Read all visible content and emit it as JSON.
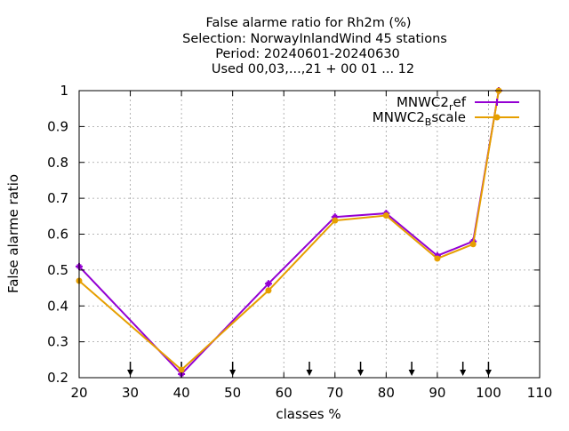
{
  "chart_data": {
    "type": "line",
    "title_lines": [
      "False alarme ratio  for Rh2m (%)",
      "Selection: NorwayInlandWind     45 stations",
      "Period: 20240601-20240630",
      "Used 00,03,...,21 + 00 01 ... 12"
    ],
    "xlabel": "classes %",
    "ylabel": "False alarme ratio",
    "xlim": [
      20,
      110
    ],
    "ylim": [
      0.2,
      1.0
    ],
    "x_ticks": [
      20,
      30,
      40,
      50,
      60,
      70,
      80,
      90,
      100,
      110
    ],
    "x_tick_labels": [
      "20",
      "30",
      "40",
      "50",
      "60",
      "70",
      "80",
      "90",
      "100",
      "110"
    ],
    "y_ticks": [
      0.2,
      0.3,
      0.4,
      0.5,
      0.6,
      0.7,
      0.8,
      0.9,
      1.0
    ],
    "y_tick_labels": [
      "0.2",
      "0.3",
      "0.4",
      "0.5",
      "0.6",
      "0.7",
      "0.8",
      "0.9",
      "1"
    ],
    "grid": true,
    "legend_position": "top-right",
    "arrow_markers_x": [
      30,
      40,
      50,
      65,
      75,
      85,
      95,
      100
    ],
    "series": [
      {
        "name_main": "MNWC2",
        "name_sub": "r",
        "name_rest": "ef",
        "color": "#9400d3",
        "marker": "cross",
        "x": [
          20,
          40,
          57,
          70,
          80,
          90,
          97,
          102
        ],
        "y": [
          0.51,
          0.21,
          0.462,
          0.648,
          0.658,
          0.54,
          0.58,
          1.0
        ]
      },
      {
        "name_main": "MNWC2",
        "name_sub": "B",
        "name_rest": "scale",
        "color": "#e69f00",
        "marker": "circle",
        "x": [
          20,
          40,
          57,
          70,
          80,
          90,
          97,
          102
        ],
        "y": [
          0.47,
          0.222,
          0.443,
          0.638,
          0.652,
          0.532,
          0.572,
          1.0
        ]
      }
    ]
  }
}
